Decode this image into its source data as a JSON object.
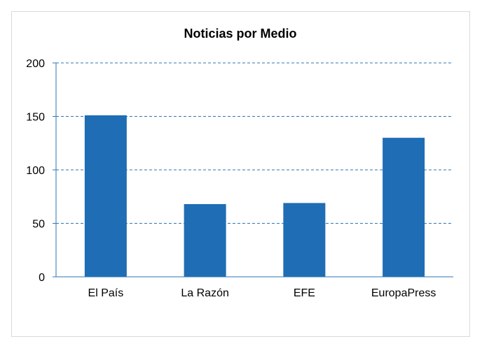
{
  "colors": {
    "bar": "#1f6db5",
    "grid": "#2e75b6",
    "axis": "#2e75b6",
    "frame": "#d9d9d9"
  },
  "chart_data": {
    "type": "bar",
    "title": "Noticias por Medio",
    "xlabel": "",
    "ylabel": "",
    "categories": [
      "El País",
      "La Razón",
      "EFE",
      "EuropaPress"
    ],
    "values": [
      151,
      68,
      69,
      130
    ],
    "ylim": [
      0,
      200
    ],
    "yticks": [
      "0",
      "50",
      "100",
      "150",
      "200"
    ],
    "grid": true,
    "grid_style": "dashed",
    "legend": "none"
  }
}
